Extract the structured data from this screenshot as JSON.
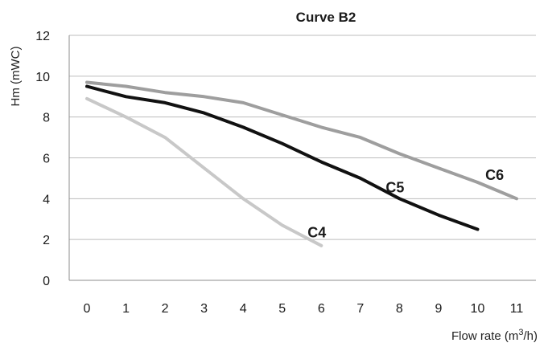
{
  "chart_data": {
    "type": "line",
    "title": "Curve B2",
    "ylabel": "Hm (mWC)",
    "xlabel": {
      "main": "Flow rate (m",
      "sup": "3",
      "end": "/h)"
    },
    "xlim": [
      0,
      11
    ],
    "ylim": [
      0,
      12
    ],
    "x_ticks": [
      0,
      1,
      2,
      3,
      4,
      5,
      6,
      7,
      8,
      9,
      10,
      11
    ],
    "y_ticks": [
      0,
      2,
      4,
      6,
      8,
      10,
      12
    ],
    "grid": "horizontal",
    "legend": "inline labels",
    "series": [
      {
        "name": "C4",
        "color": "#c8c8c8",
        "x": [
          0,
          1,
          2,
          3,
          4,
          5,
          6
        ],
        "values": [
          8.9,
          8.0,
          7.0,
          5.5,
          4.0,
          2.7,
          1.7
        ]
      },
      {
        "name": "C5",
        "color": "#111111",
        "x": [
          0,
          1,
          2,
          3,
          4,
          5,
          6,
          7,
          8,
          9,
          10
        ],
        "values": [
          9.5,
          9.0,
          8.7,
          8.2,
          7.5,
          6.7,
          5.8,
          5.0,
          4.0,
          3.2,
          2.5
        ]
      },
      {
        "name": "C6",
        "color": "#9e9e9e",
        "x": [
          0,
          1,
          2,
          3,
          4,
          5,
          6,
          7,
          8,
          9,
          10,
          11
        ],
        "values": [
          9.7,
          9.5,
          9.2,
          9.0,
          8.7,
          8.1,
          7.5,
          7.0,
          6.2,
          5.5,
          4.8,
          4.0
        ]
      }
    ]
  }
}
